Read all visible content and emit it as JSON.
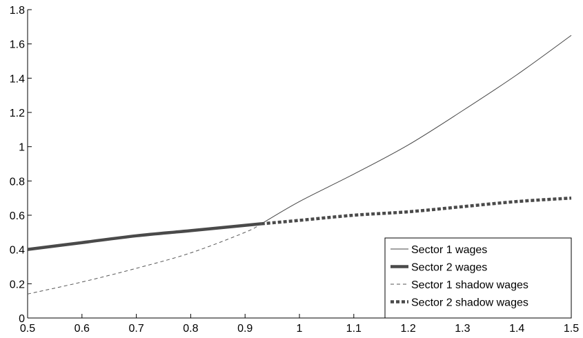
{
  "chart_data": {
    "type": "line",
    "title": "",
    "xlabel": "",
    "ylabel": "",
    "xlim": [
      0.5,
      1.5
    ],
    "ylim": [
      0,
      1.8
    ],
    "xticks": [
      "0.5",
      "0.6",
      "0.7",
      "0.8",
      "0.9",
      "1",
      "1.1",
      "1.2",
      "1.3",
      "1.4",
      "1.5"
    ],
    "yticks": [
      "0",
      "0.2",
      "0.4",
      "0.6",
      "0.8",
      "1",
      "1.2",
      "1.4",
      "1.6",
      "1.8"
    ],
    "grid": false,
    "legend_position": "bottom-right",
    "series": [
      {
        "name": "Sector 1 wages",
        "style": "thin-solid",
        "color": "#444444",
        "x": [
          0.93,
          1.0,
          1.1,
          1.2,
          1.3,
          1.4,
          1.5
        ],
        "y": [
          0.55,
          0.68,
          0.84,
          1.01,
          1.21,
          1.42,
          1.65
        ]
      },
      {
        "name": "Sector 2 wages",
        "style": "thick-solid",
        "color": "#4a4a4a",
        "x": [
          0.5,
          0.6,
          0.7,
          0.8,
          0.93
        ],
        "y": [
          0.4,
          0.44,
          0.48,
          0.51,
          0.55
        ]
      },
      {
        "name": "Sector 1 shadow wages",
        "style": "thin-dashed",
        "color": "#555555",
        "x": [
          0.5,
          0.6,
          0.7,
          0.8,
          0.9,
          0.93
        ],
        "y": [
          0.14,
          0.21,
          0.29,
          0.38,
          0.5,
          0.55
        ]
      },
      {
        "name": "Sector 2 shadow wages",
        "style": "thick-dashed",
        "color": "#4a4a4a",
        "x": [
          0.93,
          1.0,
          1.1,
          1.2,
          1.3,
          1.4,
          1.5
        ],
        "y": [
          0.55,
          0.57,
          0.6,
          0.62,
          0.65,
          0.68,
          0.7
        ]
      }
    ]
  }
}
